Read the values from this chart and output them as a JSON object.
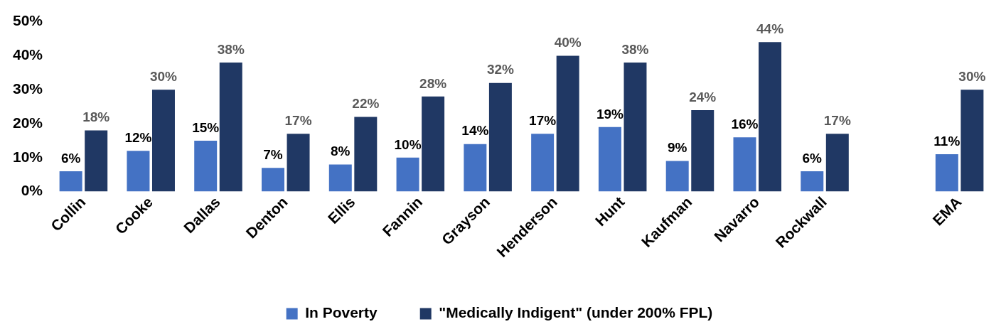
{
  "chart_data": {
    "type": "bar",
    "categories": [
      "Collin",
      "Cooke",
      "Dallas",
      "Denton",
      "Ellis",
      "Fannin",
      "Grayson",
      "Henderson",
      "Hunt",
      "Kaufman",
      "Navarro",
      "Rockwall",
      null,
      "EMA"
    ],
    "series": [
      {
        "name": "In Poverty",
        "color": "#4472c4",
        "values": [
          6,
          12,
          15,
          7,
          8,
          10,
          14,
          17,
          19,
          9,
          16,
          6,
          null,
          11
        ],
        "value_labels": [
          "6%",
          "12%",
          "15%",
          "7%",
          "8%",
          "10%",
          "14%",
          "17%",
          "19%",
          "9%",
          "16%",
          "6%",
          null,
          "11%"
        ]
      },
      {
        "name": "\"Medically Indigent\" (under 200% FPL)",
        "color": "#203864",
        "values": [
          18,
          30,
          38,
          17,
          22,
          28,
          32,
          40,
          38,
          24,
          44,
          17,
          null,
          30
        ],
        "value_labels": [
          "18%",
          "30%",
          "38%",
          "17%",
          "22%",
          "28%",
          "32%",
          "40%",
          "38%",
          "24%",
          "44%",
          "17%",
          null,
          "30%"
        ]
      }
    ],
    "ylim": [
      0,
      50
    ],
    "yticks": [
      {
        "value": 0,
        "label": "0%"
      },
      {
        "value": 10,
        "label": "10%"
      },
      {
        "value": 20,
        "label": "20%"
      },
      {
        "value": 30,
        "label": "30%"
      },
      {
        "value": 40,
        "label": "40%"
      },
      {
        "value": 50,
        "label": "50%"
      }
    ],
    "grid": false,
    "legend": "bottom"
  }
}
